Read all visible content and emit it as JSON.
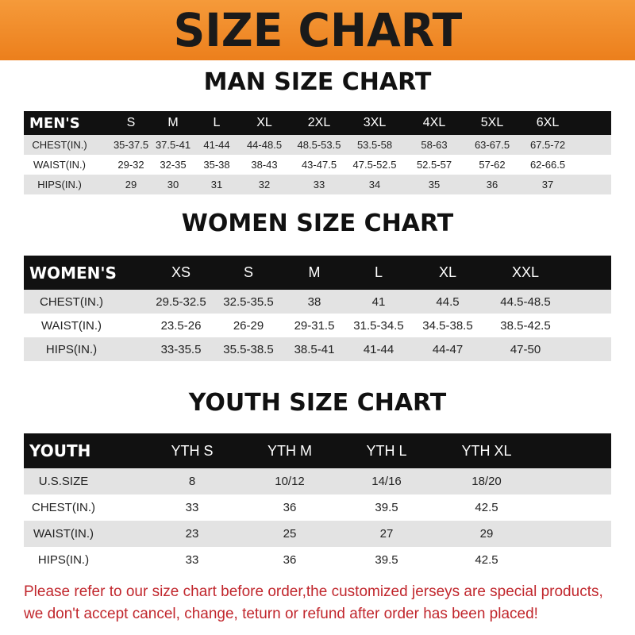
{
  "banner_title": "SIZE CHART",
  "men": {
    "title": "MAN SIZE CHART",
    "header": [
      "MEN'S",
      "S",
      "M",
      "L",
      "XL",
      "2XL",
      "3XL",
      "4XL",
      "5XL",
      "6XL"
    ],
    "rows": [
      [
        "CHEST(IN.)",
        "35-37.5",
        "37.5-41",
        "41-44",
        "44-48.5",
        "48.5-53.5",
        "53.5-58",
        "58-63",
        "63-67.5",
        "67.5-72"
      ],
      [
        "WAIST(IN.)",
        "29-32",
        "32-35",
        "35-38",
        "38-43",
        "43-47.5",
        "47.5-52.5",
        "52.5-57",
        "57-62",
        "62-66.5"
      ],
      [
        "HIPS(IN.)",
        "29",
        "30",
        "31",
        "32",
        "33",
        "34",
        "35",
        "36",
        "37"
      ]
    ]
  },
  "women": {
    "title": "WOMEN SIZE CHART",
    "header": [
      "WOMEN'S",
      "XS",
      "S",
      "M",
      "L",
      "XL",
      "XXL"
    ],
    "rows": [
      [
        "CHEST(IN.)",
        "29.5-32.5",
        "32.5-35.5",
        "38",
        "41",
        "44.5",
        "44.5-48.5"
      ],
      [
        "WAIST(IN.)",
        "23.5-26",
        "26-29",
        "29-31.5",
        "31.5-34.5",
        "34.5-38.5",
        "38.5-42.5"
      ],
      [
        "HIPS(IN.)",
        "33-35.5",
        "35.5-38.5",
        "38.5-41",
        "41-44",
        "44-47",
        "47-50"
      ]
    ]
  },
  "youth": {
    "title": "YOUTH SIZE CHART",
    "header": [
      "YOUTH",
      "YTH S",
      "YTH M",
      "YTH L",
      "YTH XL"
    ],
    "rows": [
      [
        "U.S.SIZE",
        "8",
        "10/12",
        "14/16",
        "18/20"
      ],
      [
        "CHEST(IN.)",
        "33",
        "36",
        "39.5",
        "42.5"
      ],
      [
        "WAIST(IN.)",
        "23",
        "25",
        "27",
        "29"
      ],
      [
        "HIPS(IN.)",
        "33",
        "36",
        "39.5",
        "42.5"
      ]
    ]
  },
  "notice": [
    "Please refer to our size chart before order,the customized jerseys are special products,",
    "we don't accept cancel, change, teturn or refund after order has been placed!"
  ],
  "colors": {
    "banner": "#ec7f1c",
    "header_row": "#111111",
    "stripe": "#e3e3e3",
    "notice": "#c1272d"
  }
}
